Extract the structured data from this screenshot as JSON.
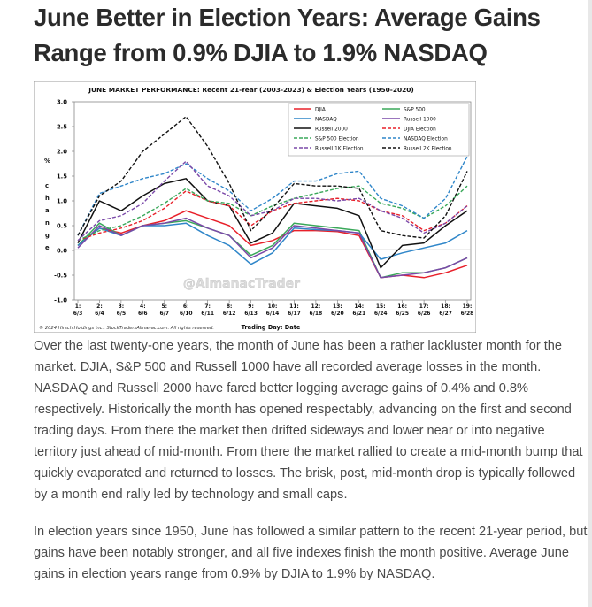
{
  "article": {
    "headline": "June Better in Election Years: Average Gains Range from 0.9% DJIA to 1.9% NASDAQ",
    "paragraph1": "Over the last twenty-one years, the month of June has been a rather lackluster month for the market. DJIA, S&P 500 and Russell 1000 have all recorded average losses in the month. NASDAQ and Russell 2000 have fared better logging average gains of 0.4% and 0.8% respectively. Historically the month has opened respectably, advancing on the first and second trading days. From there the market then drifted sideways and lower near or into negative territory just ahead of mid-month. From there the market rallied to create a mid-month bump that quickly evaporated and returned to losses. The brisk, post, mid-month drop is typically followed by a month end rally led by technology and small caps.",
    "paragraph2": "In election years since 1950, June has followed a similar pattern to the recent 21-year period, but gains have been notably stronger, and all five indexes finish the month positive. Average June gains in election years range from 0.9% by DJIA to 1.9% by NASDAQ."
  },
  "chart_data": {
    "type": "line",
    "title": "JUNE MARKET PERFORMANCE: Recent 21-Year (2003-2023) & Election Years (1950-2020)",
    "xlabel": "Trading Day: Date",
    "ylabel": "% change",
    "ylabel_top": "%",
    "ylabel_letters": [
      "c",
      "h",
      "a",
      "n",
      "g",
      "e"
    ],
    "copyright": "© 2024 Hirsch Holdings Inc., StockTradersAlmanac.com. All rights reserved.",
    "watermark": "@AlmanacTrader",
    "ylim": [
      -1.0,
      3.0
    ],
    "yticks": [
      "3.0",
      "2.5",
      "2.0",
      "1.5",
      "1.0",
      "0.5",
      "0.0",
      "-0.5",
      "-1.0"
    ],
    "grid": false,
    "legend_position": "top-right",
    "x_day": [
      "1:",
      "2:",
      "3:",
      "4:",
      "5:",
      "6:",
      "7:",
      "8:",
      "9:",
      "10:",
      "11:",
      "12:",
      "13:",
      "14:",
      "15:",
      "16:",
      "17:",
      "18:",
      "19:"
    ],
    "x_date": [
      "6/3",
      "6/4",
      "6/5",
      "6/6",
      "6/7",
      "6/10",
      "6/11",
      "6/12",
      "6/13",
      "6/14",
      "6/17",
      "6/18",
      "6/20",
      "6/21",
      "6/24",
      "6/25",
      "6/26",
      "6/27",
      "6/28"
    ],
    "series": [
      {
        "name": "DJIA",
        "color": "#e8202a",
        "dash": "solid",
        "values": [
          0.1,
          0.45,
          0.35,
          0.5,
          0.6,
          0.8,
          0.65,
          0.5,
          0.1,
          0.2,
          0.4,
          0.4,
          0.38,
          0.3,
          -0.55,
          -0.5,
          -0.55,
          -0.45,
          -0.3
        ]
      },
      {
        "name": "S&P 500",
        "color": "#3aa85a",
        "dash": "solid",
        "values": [
          0.1,
          0.55,
          0.3,
          0.5,
          0.55,
          0.6,
          0.45,
          0.3,
          -0.1,
          0.1,
          0.55,
          0.5,
          0.45,
          0.4,
          -0.55,
          -0.45,
          -0.45,
          -0.35,
          -0.15
        ]
      },
      {
        "name": "NASDAQ",
        "color": "#2f86c9",
        "dash": "solid",
        "values": [
          0.1,
          0.45,
          0.3,
          0.5,
          0.5,
          0.55,
          0.3,
          0.1,
          -0.28,
          -0.05,
          0.45,
          0.42,
          0.4,
          0.35,
          -0.18,
          -0.05,
          0.05,
          0.15,
          0.4
        ]
      },
      {
        "name": "Russell 1000",
        "color": "#7a48a8",
        "dash": "solid",
        "values": [
          0.05,
          0.5,
          0.3,
          0.5,
          0.55,
          0.65,
          0.45,
          0.3,
          -0.15,
          0.05,
          0.5,
          0.45,
          0.4,
          0.35,
          -0.55,
          -0.5,
          -0.45,
          -0.35,
          -0.15
        ]
      },
      {
        "name": "Russell 2000",
        "color": "#111111",
        "dash": "solid",
        "values": [
          0.15,
          1.0,
          0.8,
          1.1,
          1.35,
          1.45,
          1.0,
          0.9,
          0.15,
          0.35,
          0.95,
          0.9,
          0.85,
          0.7,
          -0.35,
          0.1,
          0.15,
          0.5,
          0.8
        ]
      },
      {
        "name": "DJIA Election",
        "color": "#e8202a",
        "dash": "dashed",
        "values": [
          0.2,
          0.35,
          0.45,
          0.6,
          0.85,
          1.2,
          1.0,
          0.9,
          0.5,
          0.8,
          0.95,
          1.0,
          1.05,
          1.0,
          0.8,
          0.7,
          0.4,
          0.55,
          0.9
        ]
      },
      {
        "name": "S&P 500 Election",
        "color": "#3aa85a",
        "dash": "dashed",
        "values": [
          0.2,
          0.4,
          0.5,
          0.7,
          0.95,
          1.25,
          1.0,
          0.95,
          0.7,
          0.9,
          1.05,
          1.15,
          1.25,
          1.3,
          0.95,
          0.85,
          0.65,
          0.9,
          1.3
        ]
      },
      {
        "name": "NASDAQ Election",
        "color": "#2f86c9",
        "dash": "dashed",
        "values": [
          0.3,
          1.15,
          1.3,
          1.45,
          1.55,
          1.75,
          1.45,
          1.2,
          0.8,
          1.05,
          1.4,
          1.4,
          1.55,
          1.6,
          1.05,
          0.9,
          0.65,
          1.05,
          1.9
        ]
      },
      {
        "name": "Russell 1K Election",
        "color": "#7a48a8",
        "dash": "dashed",
        "values": [
          0.2,
          0.6,
          0.7,
          0.95,
          1.4,
          1.8,
          1.3,
          1.1,
          0.7,
          0.8,
          1.05,
          1.05,
          1.0,
          1.05,
          0.8,
          0.65,
          0.35,
          0.55,
          0.9
        ]
      },
      {
        "name": "Russell 2K Election",
        "color": "#111111",
        "dash": "dashed",
        "values": [
          0.3,
          1.1,
          1.4,
          2.0,
          2.35,
          2.7,
          2.1,
          1.35,
          0.4,
          0.85,
          1.35,
          1.3,
          1.3,
          1.25,
          0.4,
          0.3,
          0.25,
          0.7,
          1.6
        ]
      }
    ]
  }
}
